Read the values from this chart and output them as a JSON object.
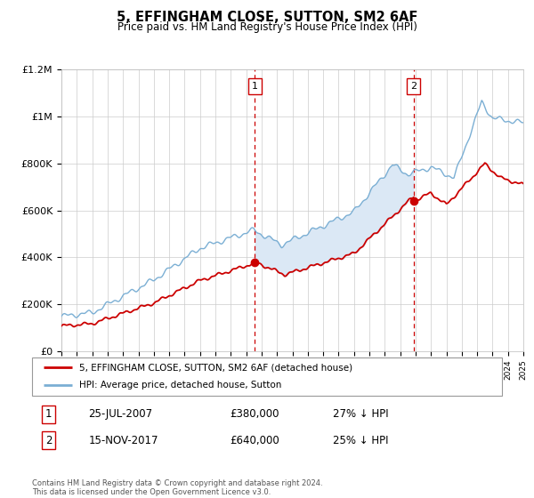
{
  "title": "5, EFFINGHAM CLOSE, SUTTON, SM2 6AF",
  "subtitle": "Price paid vs. HM Land Registry's House Price Index (HPI)",
  "legend_label_red": "5, EFFINGHAM CLOSE, SUTTON, SM2 6AF (detached house)",
  "legend_label_blue": "HPI: Average price, detached house, Sutton",
  "transaction1_date": "25-JUL-2007",
  "transaction1_price": "£380,000",
  "transaction1_hpi": "27% ↓ HPI",
  "transaction1_year": 2007.57,
  "transaction1_value": 380000,
  "transaction2_date": "15-NOV-2017",
  "transaction2_price": "£640,000",
  "transaction2_hpi": "25% ↓ HPI",
  "transaction2_year": 2017.87,
  "transaction2_value": 640000,
  "footer": "Contains HM Land Registry data © Crown copyright and database right 2024.\nThis data is licensed under the Open Government Licence v3.0.",
  "xmin": 1995,
  "xmax": 2025,
  "ymin": 0,
  "ymax": 1200000,
  "red_color": "#cc0000",
  "blue_color": "#7bafd4",
  "shade_color": "#dbe8f5",
  "grid_color": "#cccccc",
  "bg_color": "#ffffff"
}
